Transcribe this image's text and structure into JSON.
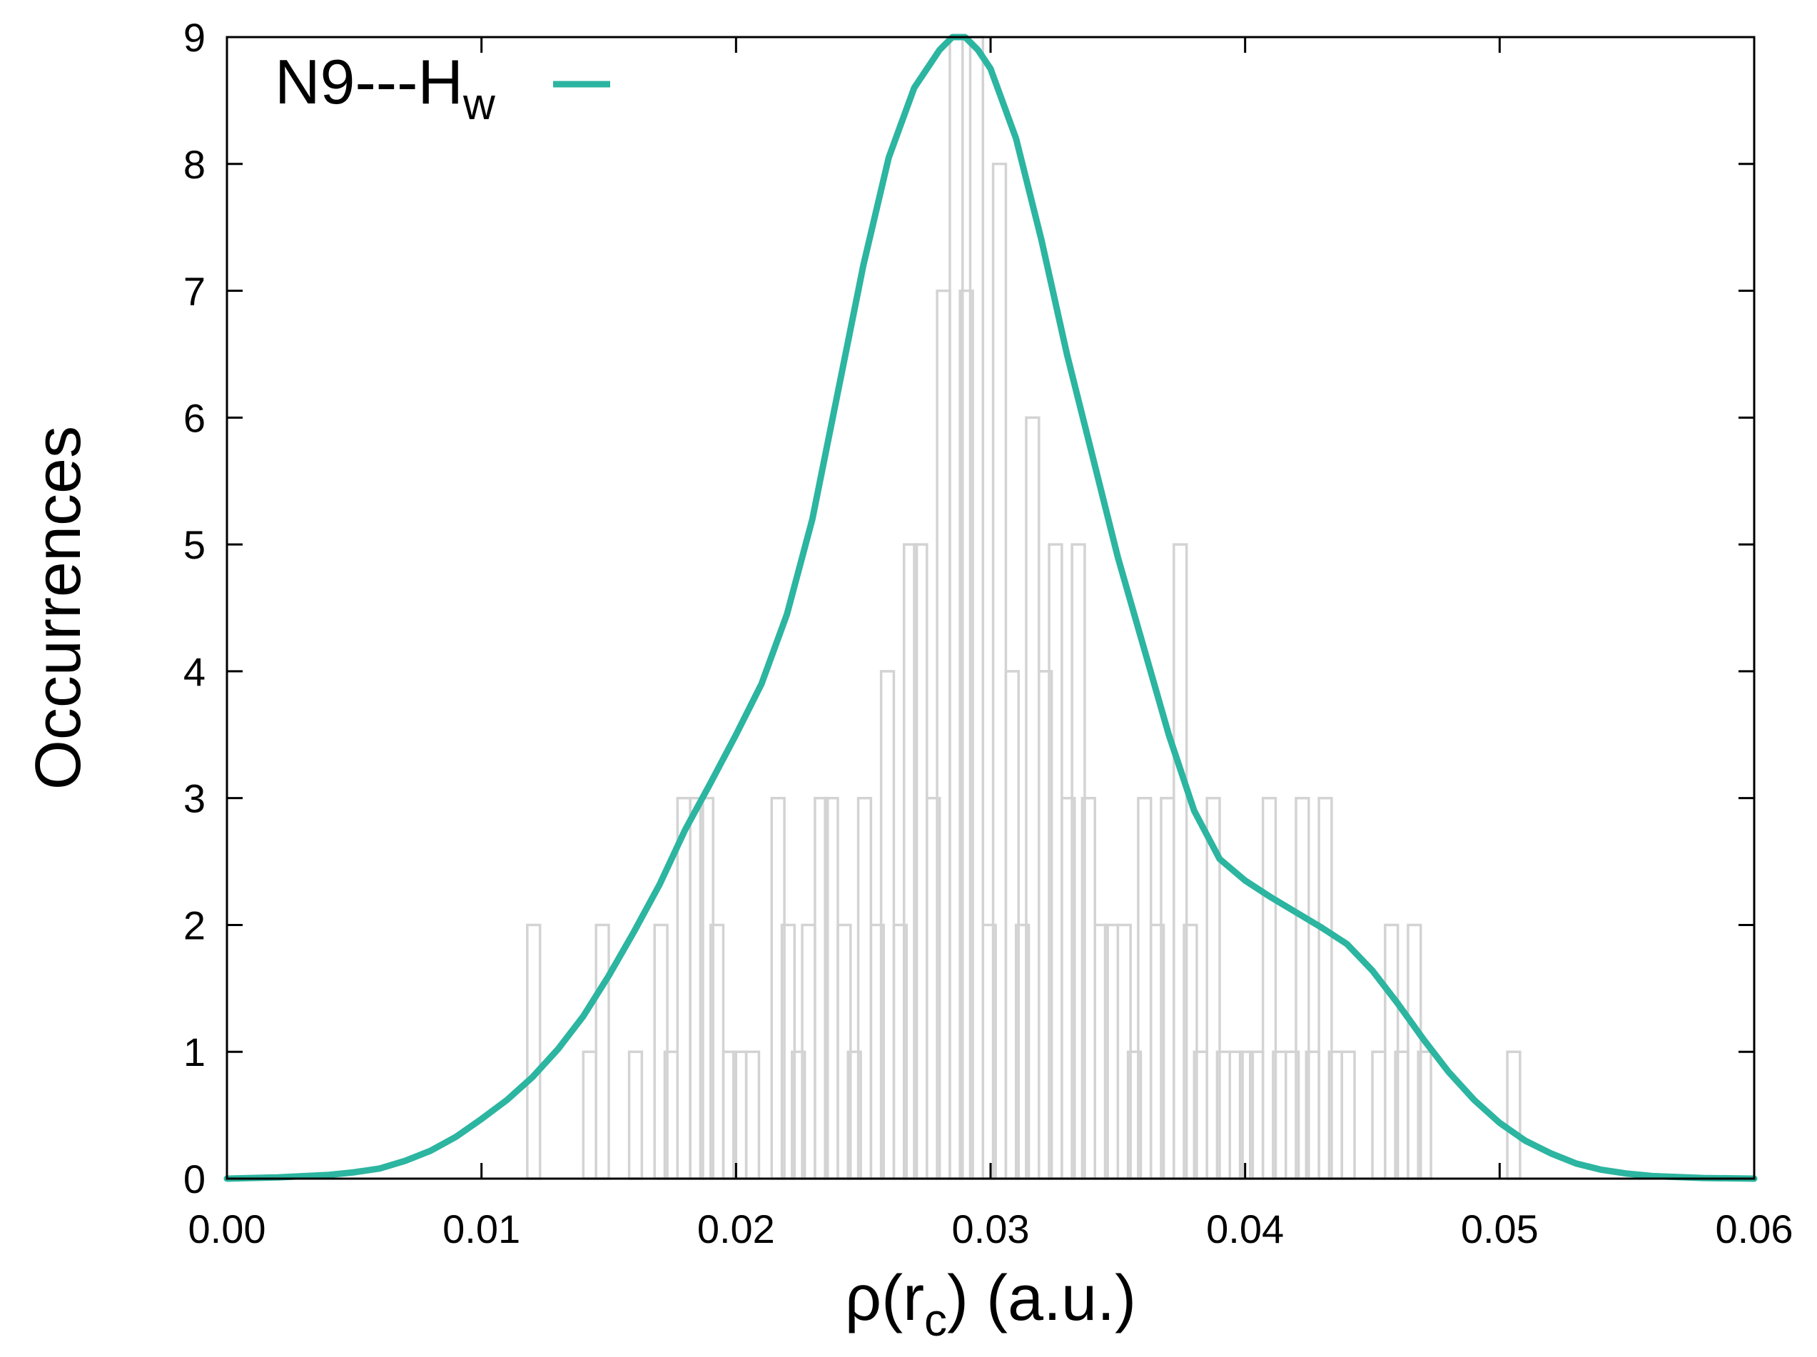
{
  "chart_data": {
    "type": "bar",
    "title": "",
    "xlabel": {
      "prefix": "ρ(r",
      "sub": "c",
      "suffix": ") (a.u.)"
    },
    "ylabel": "Occurrences",
    "xlim": [
      0.0,
      0.06
    ],
    "ylim": [
      0,
      9
    ],
    "xticks": [
      "0.00",
      "0.01",
      "0.02",
      "0.03",
      "0.04",
      "0.05",
      "0.06"
    ],
    "yticks": [
      "0",
      "1",
      "2",
      "3",
      "4",
      "5",
      "6",
      "7",
      "8",
      "9"
    ],
    "bin_width": 0.0005,
    "histogram": {
      "name": "histogram",
      "color": "#d3d3d3",
      "bin_starts": [
        0.0118,
        0.014,
        0.0145,
        0.0158,
        0.0168,
        0.0172,
        0.0177,
        0.0182,
        0.0186,
        0.019,
        0.0195,
        0.0199,
        0.0204,
        0.0214,
        0.0218,
        0.0222,
        0.0226,
        0.0231,
        0.0235,
        0.024,
        0.0244,
        0.0248,
        0.0253,
        0.0257,
        0.0262,
        0.0266,
        0.027,
        0.0275,
        0.0279,
        0.0284,
        0.0288,
        0.0292,
        0.0297,
        0.0301,
        0.0306,
        0.031,
        0.0314,
        0.0319,
        0.0323,
        0.0328,
        0.0332,
        0.0336,
        0.0341,
        0.0345,
        0.035,
        0.0354,
        0.0358,
        0.0363,
        0.0367,
        0.0372,
        0.0376,
        0.038,
        0.0385,
        0.0389,
        0.0394,
        0.0398,
        0.0402,
        0.0407,
        0.0411,
        0.0416,
        0.042,
        0.0424,
        0.0429,
        0.0433,
        0.0438,
        0.045,
        0.0455,
        0.0459,
        0.0464,
        0.0468,
        0.0503
      ],
      "counts": [
        2,
        1,
        2,
        1,
        2,
        1,
        3,
        3,
        3,
        2,
        1,
        1,
        1,
        3,
        2,
        1,
        2,
        3,
        3,
        2,
        1,
        3,
        2,
        4,
        2,
        5,
        5,
        3,
        7,
        9,
        7,
        9,
        2,
        8,
        4,
        2,
        6,
        4,
        5,
        3,
        5,
        3,
        2,
        2,
        2,
        1,
        3,
        2,
        3,
        5,
        2,
        1,
        3,
        1,
        1,
        1,
        1,
        3,
        1,
        1,
        3,
        1,
        3,
        1,
        1,
        1,
        2,
        1,
        2,
        1,
        1
      ]
    },
    "series": [
      {
        "name": "N9---H",
        "name_sub": "w",
        "color": "#2cb5a0",
        "x": [
          0.0,
          0.002,
          0.004,
          0.005,
          0.006,
          0.007,
          0.008,
          0.009,
          0.01,
          0.011,
          0.012,
          0.013,
          0.014,
          0.015,
          0.016,
          0.017,
          0.018,
          0.019,
          0.02,
          0.021,
          0.022,
          0.023,
          0.024,
          0.025,
          0.026,
          0.027,
          0.028,
          0.0285,
          0.029,
          0.0295,
          0.03,
          0.031,
          0.032,
          0.033,
          0.034,
          0.035,
          0.036,
          0.037,
          0.038,
          0.039,
          0.04,
          0.041,
          0.042,
          0.043,
          0.044,
          0.045,
          0.046,
          0.047,
          0.048,
          0.049,
          0.05,
          0.051,
          0.052,
          0.053,
          0.054,
          0.055,
          0.056,
          0.058,
          0.06
        ],
        "values": [
          0.0,
          0.01,
          0.03,
          0.05,
          0.08,
          0.14,
          0.22,
          0.33,
          0.47,
          0.62,
          0.8,
          1.02,
          1.28,
          1.6,
          1.95,
          2.32,
          2.75,
          3.12,
          3.5,
          3.9,
          4.45,
          5.2,
          6.2,
          7.2,
          8.05,
          8.6,
          8.9,
          9.0,
          9.0,
          8.9,
          8.75,
          8.2,
          7.4,
          6.5,
          5.7,
          4.9,
          4.2,
          3.5,
          2.9,
          2.52,
          2.35,
          2.22,
          2.1,
          1.98,
          1.85,
          1.64,
          1.38,
          1.1,
          0.84,
          0.62,
          0.44,
          0.3,
          0.2,
          0.12,
          0.07,
          0.04,
          0.02,
          0.005,
          0.0
        ]
      }
    ],
    "legend_position": "top-left"
  }
}
